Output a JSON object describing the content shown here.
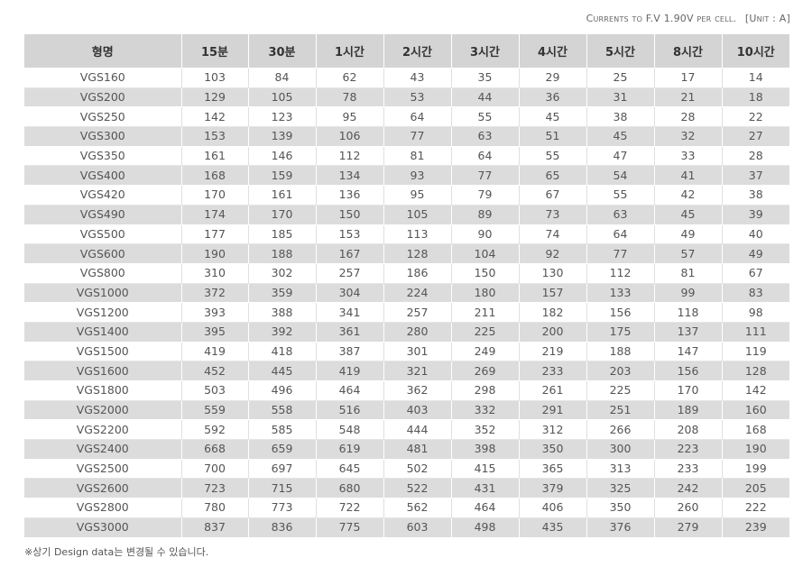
{
  "caption": {
    "condition": "Currents to F.V 1.90V per cell.",
    "unit": "[Unit : A]"
  },
  "table": {
    "headers": [
      "형명",
      "15분",
      "30분",
      "1시간",
      "2시간",
      "3시간",
      "4시간",
      "5시간",
      "8시간",
      "10시간"
    ],
    "rows": [
      [
        "VGS160",
        "103",
        "84",
        "62",
        "43",
        "35",
        "29",
        "25",
        "17",
        "14"
      ],
      [
        "VGS200",
        "129",
        "105",
        "78",
        "53",
        "44",
        "36",
        "31",
        "21",
        "18"
      ],
      [
        "VGS250",
        "142",
        "123",
        "95",
        "64",
        "55",
        "45",
        "38",
        "28",
        "22"
      ],
      [
        "VGS300",
        "153",
        "139",
        "106",
        "77",
        "63",
        "51",
        "45",
        "32",
        "27"
      ],
      [
        "VGS350",
        "161",
        "146",
        "112",
        "81",
        "64",
        "55",
        "47",
        "33",
        "28"
      ],
      [
        "VGS400",
        "168",
        "159",
        "134",
        "93",
        "77",
        "65",
        "54",
        "41",
        "37"
      ],
      [
        "VGS420",
        "170",
        "161",
        "136",
        "95",
        "79",
        "67",
        "55",
        "42",
        "38"
      ],
      [
        "VGS490",
        "174",
        "170",
        "150",
        "105",
        "89",
        "73",
        "63",
        "45",
        "39"
      ],
      [
        "VGS500",
        "177",
        "185",
        "153",
        "113",
        "90",
        "74",
        "64",
        "49",
        "40"
      ],
      [
        "VGS600",
        "190",
        "188",
        "167",
        "128",
        "104",
        "92",
        "77",
        "57",
        "49"
      ],
      [
        "VGS800",
        "310",
        "302",
        "257",
        "186",
        "150",
        "130",
        "112",
        "81",
        "67"
      ],
      [
        "VGS1000",
        "372",
        "359",
        "304",
        "224",
        "180",
        "157",
        "133",
        "99",
        "83"
      ],
      [
        "VGS1200",
        "393",
        "388",
        "341",
        "257",
        "211",
        "182",
        "156",
        "118",
        "98"
      ],
      [
        "VGS1400",
        "395",
        "392",
        "361",
        "280",
        "225",
        "200",
        "175",
        "137",
        "111"
      ],
      [
        "VGS1500",
        "419",
        "418",
        "387",
        "301",
        "249",
        "219",
        "188",
        "147",
        "119"
      ],
      [
        "VGS1600",
        "452",
        "445",
        "419",
        "321",
        "269",
        "233",
        "203",
        "156",
        "128"
      ],
      [
        "VGS1800",
        "503",
        "496",
        "464",
        "362",
        "298",
        "261",
        "225",
        "170",
        "142"
      ],
      [
        "VGS2000",
        "559",
        "558",
        "516",
        "403",
        "332",
        "291",
        "251",
        "189",
        "160"
      ],
      [
        "VGS2200",
        "592",
        "585",
        "548",
        "444",
        "352",
        "312",
        "266",
        "208",
        "168"
      ],
      [
        "VGS2400",
        "668",
        "659",
        "619",
        "481",
        "398",
        "350",
        "300",
        "223",
        "190"
      ],
      [
        "VGS2500",
        "700",
        "697",
        "645",
        "502",
        "415",
        "365",
        "313",
        "233",
        "199"
      ],
      [
        "VGS2600",
        "723",
        "715",
        "680",
        "522",
        "431",
        "379",
        "325",
        "242",
        "205"
      ],
      [
        "VGS2800",
        "780",
        "773",
        "722",
        "562",
        "464",
        "406",
        "350",
        "260",
        "222"
      ],
      [
        "VGS3000",
        "837",
        "836",
        "775",
        "603",
        "498",
        "435",
        "376",
        "279",
        "239"
      ]
    ]
  },
  "footnote": "※상기 Design data는 변경될 수 있습니다."
}
